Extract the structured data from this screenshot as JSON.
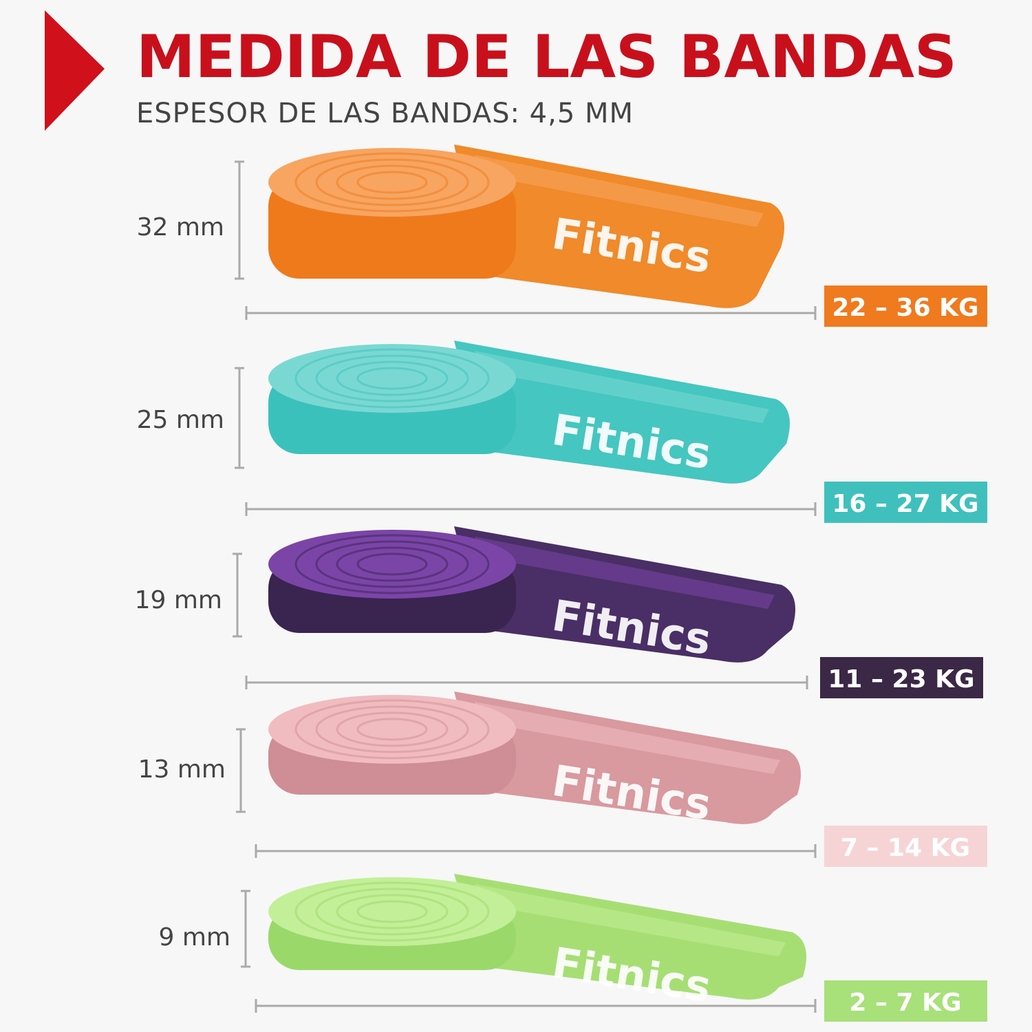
{
  "header": {
    "title": "MEDIDA DE LAS BANDAS",
    "subtitle": "ESPESOR DE LAS BANDAS: 4,5 MM"
  },
  "brand": "Fitnics",
  "bands": [
    {
      "width": "32 mm",
      "weight": "22 – 36 KG"
    },
    {
      "width": "25 mm",
      "weight": "16 – 27 KG"
    },
    {
      "width": "19 mm",
      "weight": "11 – 23 KG"
    },
    {
      "width": "13 mm",
      "weight": "7 – 14 KG"
    },
    {
      "width": "9 mm",
      "weight": "2 – 7 KG"
    }
  ]
}
